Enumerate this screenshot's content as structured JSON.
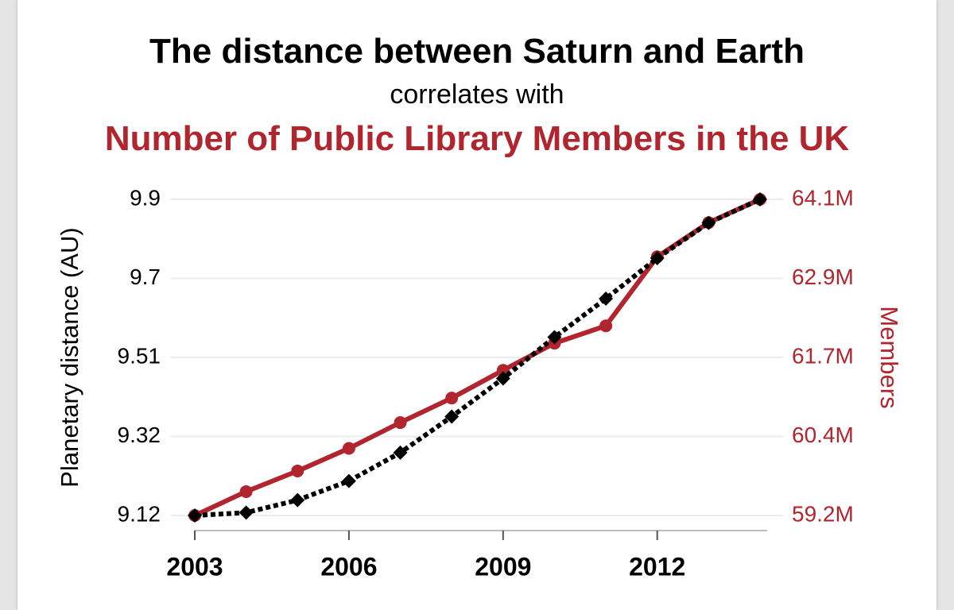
{
  "chart_data": {
    "type": "line",
    "title": "The distance between Saturn and Earth",
    "subtitle": "correlates with",
    "title2": "Number of Public Library Members in the UK",
    "x": [
      2003,
      2004,
      2005,
      2006,
      2007,
      2008,
      2009,
      2010,
      2011,
      2012,
      2013,
      2014
    ],
    "x_ticks": [
      "2003",
      "2006",
      "2009",
      "2012"
    ],
    "x_tick_values": [
      2003,
      2006,
      2009,
      2012
    ],
    "y_left": {
      "label": "Planetary distance (AU)",
      "ticks": [
        "9.12",
        "9.32",
        "9.51",
        "9.7",
        "9.9"
      ],
      "tick_values": [
        9.12,
        9.32,
        9.51,
        9.7,
        9.9
      ],
      "range": [
        9.12,
        9.9
      ]
    },
    "y_right": {
      "label": "Members",
      "ticks": [
        "59.2M",
        "60.4M",
        "61.7M",
        "62.9M",
        "64.1M"
      ],
      "tick_values": [
        59.2,
        60.4,
        61.7,
        62.9,
        64.1
      ],
      "range": [
        59.2,
        64.1
      ]
    },
    "series": [
      {
        "axis": "right",
        "color": "#b0252e",
        "style": "solid",
        "marker": "circle",
        "values": [
          59.2,
          59.57,
          59.89,
          60.24,
          60.64,
          61.02,
          61.45,
          61.87,
          62.14,
          63.21,
          63.74,
          64.1
        ]
      },
      {
        "axis": "left",
        "color": "#000000",
        "style": "dotted",
        "marker": "diamond",
        "values": [
          9.12,
          9.127,
          9.158,
          9.205,
          9.275,
          9.364,
          9.458,
          9.56,
          9.655,
          9.755,
          9.842,
          9.9
        ]
      }
    ],
    "grid": true
  }
}
